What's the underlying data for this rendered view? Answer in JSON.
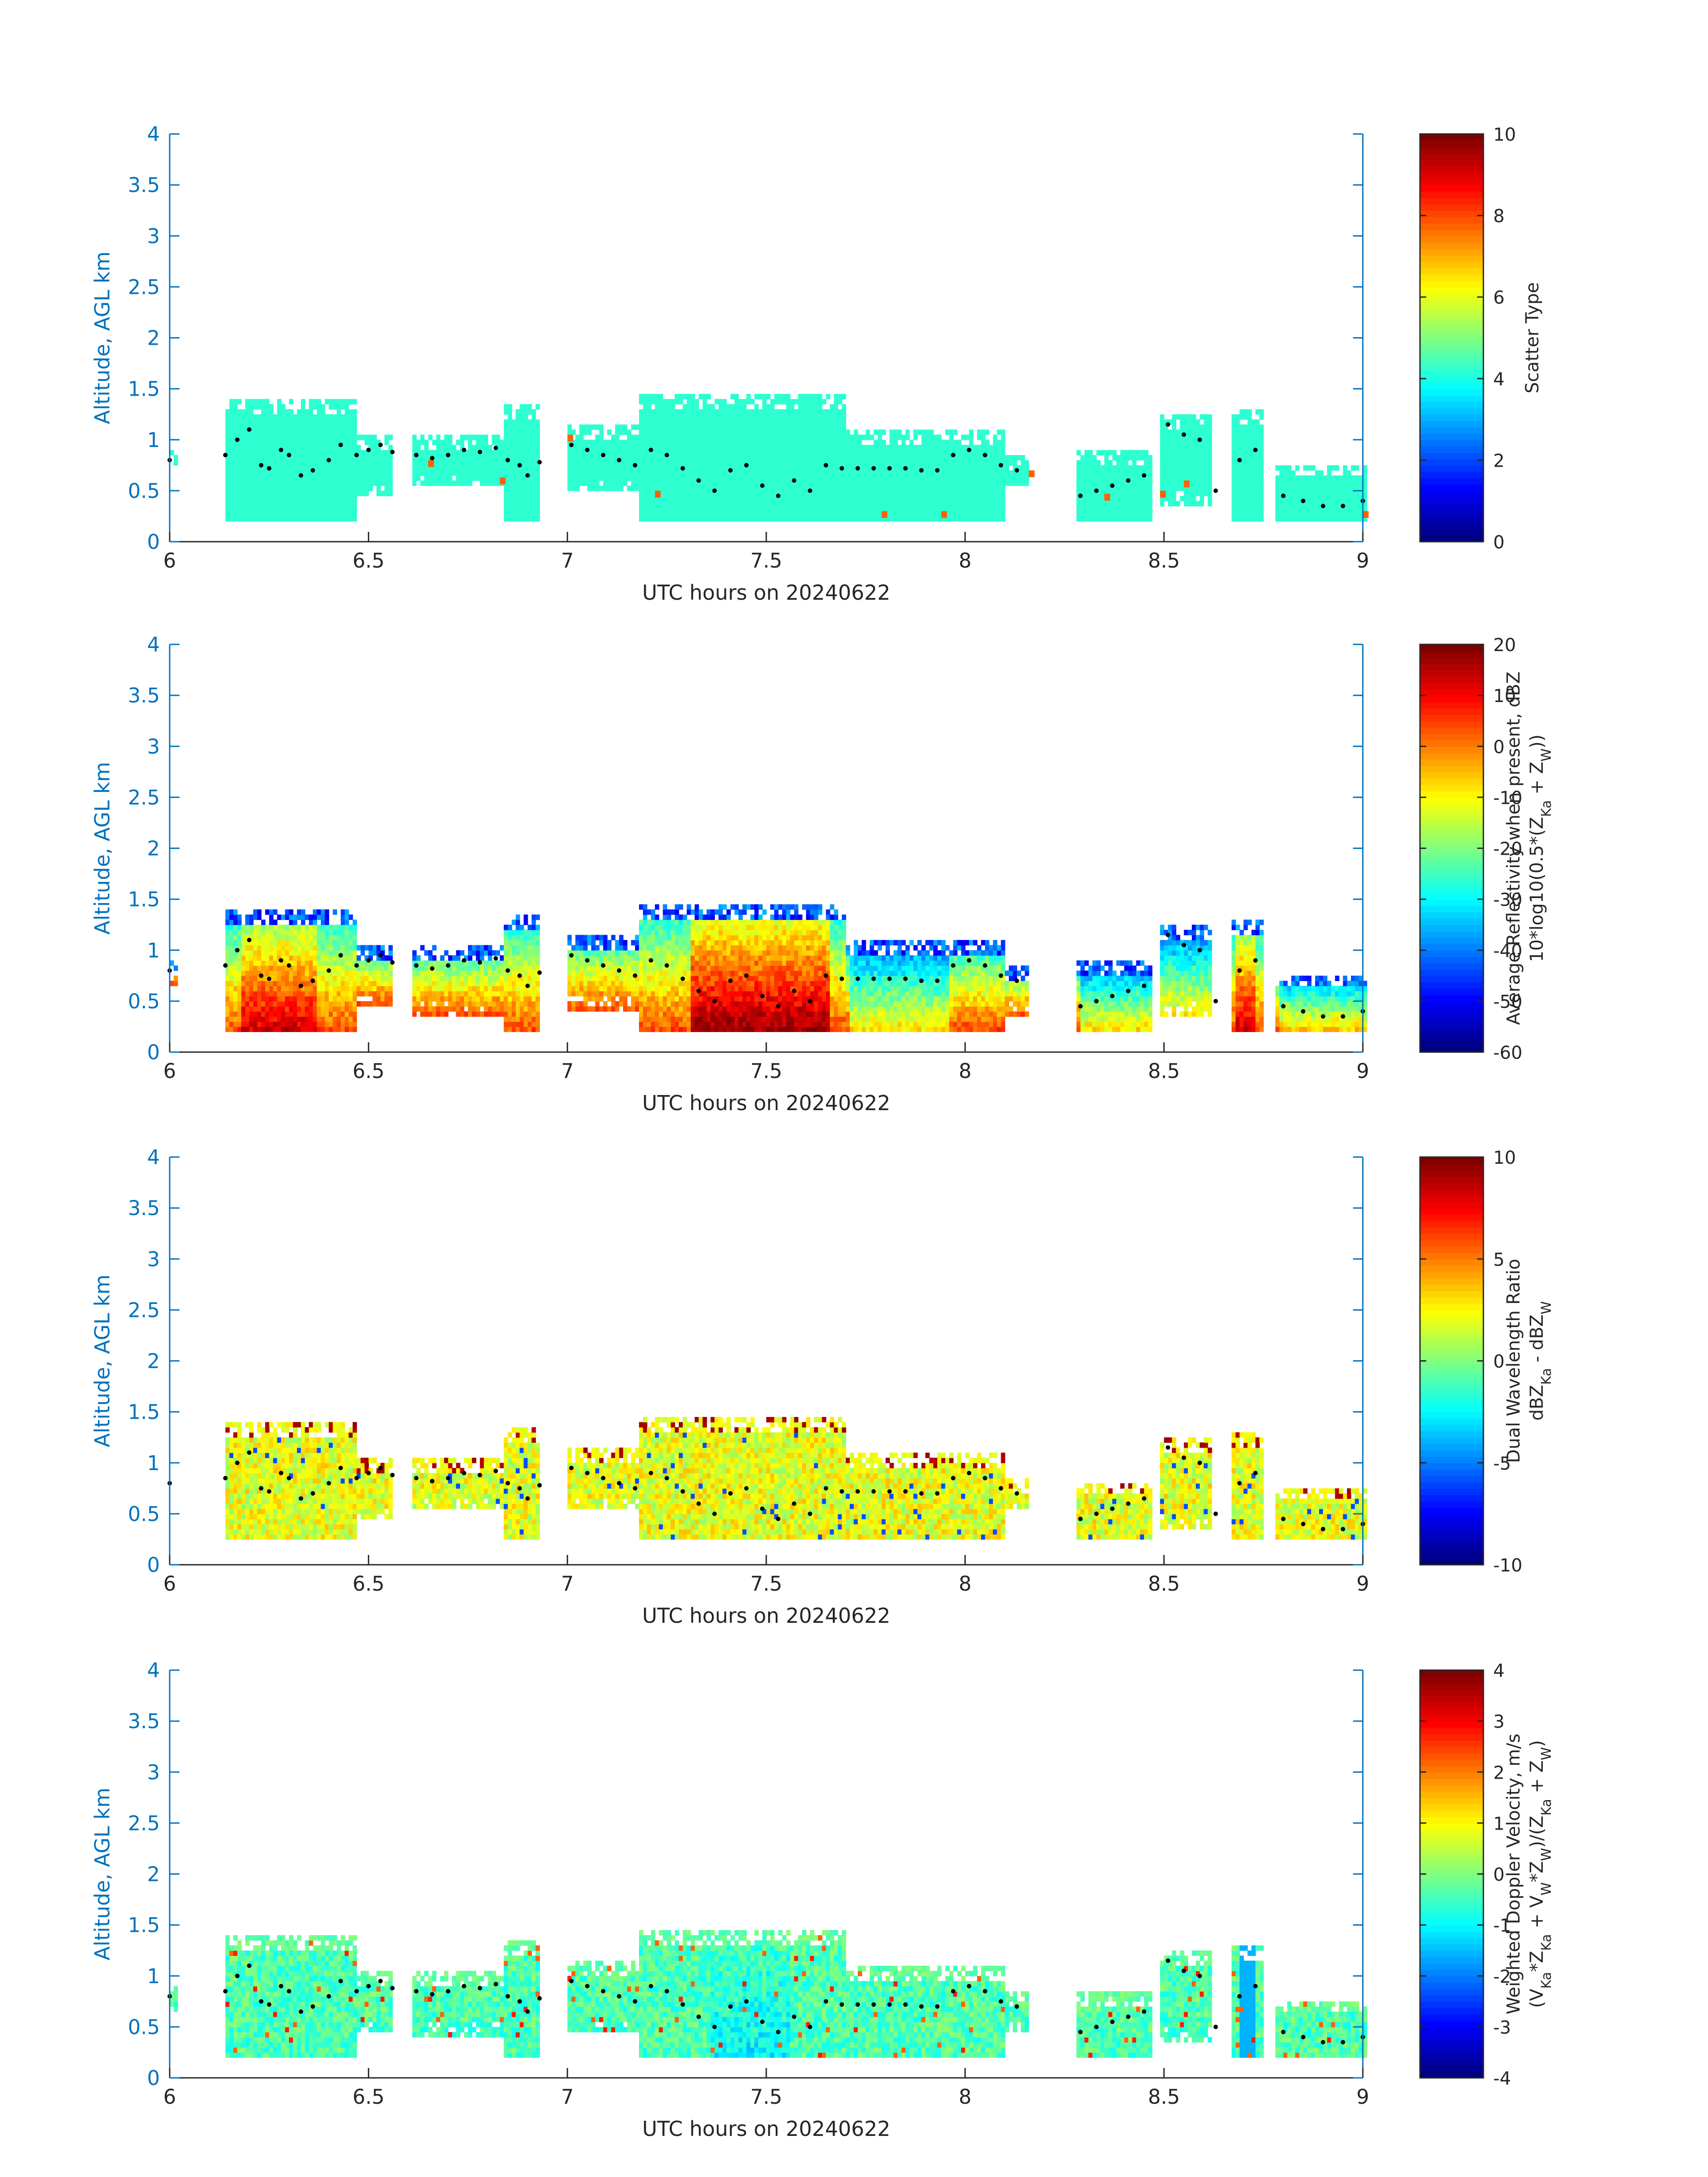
{
  "chart_data": [
    {
      "type": "heatmap",
      "xlabel": "UTC hours on 20240622",
      "ylabel": "Altitude, AGL km",
      "xlim": [
        6,
        9
      ],
      "ylim": [
        0,
        4
      ],
      "xticks": [
        "6",
        "6.5",
        "7",
        "7.5",
        "8",
        "8.5",
        "9"
      ],
      "yticks": [
        "0",
        "0.5",
        "1",
        "1.5",
        "2",
        "2.5",
        "3",
        "3.5",
        "4"
      ],
      "colorbar": {
        "label_lines": [
          "Scatter Type"
        ],
        "range": [
          0,
          10
        ],
        "ticks": [
          "0",
          "2",
          "4",
          "6",
          "8",
          "10"
        ]
      },
      "field": {
        "kind": "scatter",
        "min": 0,
        "max": 10
      },
      "regions": [
        {
          "x0": 6.0,
          "x1": 6.02,
          "y0": 0.75,
          "y1": 0.9
        },
        {
          "x0": 6.14,
          "x1": 6.47,
          "y0": 0.2,
          "y1": 1.4
        },
        {
          "x0": 6.47,
          "x1": 6.56,
          "y0": 0.45,
          "y1": 1.05
        },
        {
          "x0": 6.61,
          "x1": 6.88,
          "y0": 0.55,
          "y1": 1.05
        },
        {
          "x0": 6.84,
          "x1": 6.93,
          "y0": 0.2,
          "y1": 1.35
        },
        {
          "x0": 7.0,
          "x1": 7.22,
          "y0": 0.5,
          "y1": 1.15
        },
        {
          "x0": 7.18,
          "x1": 7.7,
          "y0": 0.2,
          "y1": 1.45
        },
        {
          "x0": 7.7,
          "x1": 8.1,
          "y0": 0.2,
          "y1": 1.1
        },
        {
          "x0": 8.1,
          "x1": 8.16,
          "y0": 0.55,
          "y1": 0.85
        },
        {
          "x0": 8.28,
          "x1": 8.47,
          "y0": 0.2,
          "y1": 0.9
        },
        {
          "x0": 8.49,
          "x1": 8.62,
          "y0": 0.35,
          "y1": 1.25
        },
        {
          "x0": 8.67,
          "x1": 8.75,
          "y0": 0.2,
          "y1": 1.3
        },
        {
          "x0": 8.78,
          "x1": 9.01,
          "y0": 0.2,
          "y1": 0.75
        }
      ],
      "accent_points": [
        {
          "x": 7.0,
          "y": 1.0
        },
        {
          "x": 7.22,
          "y": 0.45
        },
        {
          "x": 7.79,
          "y": 0.25
        },
        {
          "x": 7.94,
          "y": 0.25
        },
        {
          "x": 8.16,
          "y": 0.65
        },
        {
          "x": 8.35,
          "y": 0.42
        },
        {
          "x": 8.49,
          "y": 0.45
        },
        {
          "x": 8.55,
          "y": 0.55
        },
        {
          "x": 6.83,
          "y": 0.58
        },
        {
          "x": 6.65,
          "y": 0.75
        },
        {
          "x": 9.0,
          "y": 0.25
        }
      ]
    },
    {
      "type": "heatmap",
      "xlabel": "UTC hours on 20240622",
      "ylabel": "Altitude, AGL km",
      "xlim": [
        6,
        9
      ],
      "ylim": [
        0,
        4
      ],
      "xticks": [
        "6",
        "6.5",
        "7",
        "7.5",
        "8",
        "8.5",
        "9"
      ],
      "yticks": [
        "0",
        "0.5",
        "1",
        "1.5",
        "2",
        "2.5",
        "3",
        "3.5",
        "4"
      ],
      "colorbar": {
        "label_lines": [
          "Average Reflectivity when present, dBZ",
          "10*log10(0.5*(Z_Ka + Z_W))"
        ],
        "range": [
          -60,
          20
        ],
        "ticks": [
          "-60",
          "-50",
          "-40",
          "-30",
          "-20",
          "-10",
          "0",
          "10",
          "20"
        ]
      },
      "field": {
        "kind": "reflectivity",
        "min": -60,
        "max": 20
      },
      "regions": [
        {
          "x0": 6.0,
          "x1": 6.02,
          "y0": 0.65,
          "y1": 0.9
        },
        {
          "x0": 6.14,
          "x1": 6.47,
          "y0": 0.2,
          "y1": 1.4
        },
        {
          "x0": 6.47,
          "x1": 6.56,
          "y0": 0.45,
          "y1": 1.05
        },
        {
          "x0": 6.61,
          "x1": 6.88,
          "y0": 0.35,
          "y1": 1.05
        },
        {
          "x0": 6.84,
          "x1": 6.93,
          "y0": 0.2,
          "y1": 1.35
        },
        {
          "x0": 7.0,
          "x1": 7.22,
          "y0": 0.4,
          "y1": 1.15
        },
        {
          "x0": 7.18,
          "x1": 7.7,
          "y0": 0.2,
          "y1": 1.45
        },
        {
          "x0": 7.7,
          "x1": 8.1,
          "y0": 0.2,
          "y1": 1.1
        },
        {
          "x0": 8.1,
          "x1": 8.16,
          "y0": 0.35,
          "y1": 0.85
        },
        {
          "x0": 8.28,
          "x1": 8.47,
          "y0": 0.2,
          "y1": 0.9
        },
        {
          "x0": 8.49,
          "x1": 8.62,
          "y0": 0.35,
          "y1": 1.25
        },
        {
          "x0": 8.67,
          "x1": 8.75,
          "y0": 0.2,
          "y1": 1.3
        },
        {
          "x0": 8.78,
          "x1": 9.01,
          "y0": 0.2,
          "y1": 0.75
        }
      ],
      "accent_points": []
    },
    {
      "type": "heatmap",
      "xlabel": "UTC hours on 20240622",
      "ylabel": "Altitude, AGL km",
      "xlim": [
        6,
        9
      ],
      "ylim": [
        0,
        4
      ],
      "xticks": [
        "6",
        "6.5",
        "7",
        "7.5",
        "8",
        "8.5",
        "9"
      ],
      "yticks": [
        "0",
        "0.5",
        "1",
        "1.5",
        "2",
        "2.5",
        "3",
        "3.5",
        "4"
      ],
      "colorbar": {
        "label_lines": [
          "Dual Wavelength Ratio",
          "dBZ_Ka - dBZ_W"
        ],
        "range": [
          -10,
          10
        ],
        "ticks": [
          "-10",
          "-5",
          "0",
          "5",
          "10"
        ]
      },
      "field": {
        "kind": "dwr",
        "min": -10,
        "max": 10
      },
      "regions": [
        {
          "x0": 6.14,
          "x1": 6.47,
          "y0": 0.25,
          "y1": 1.4
        },
        {
          "x0": 6.47,
          "x1": 6.56,
          "y0": 0.45,
          "y1": 1.05
        },
        {
          "x0": 6.61,
          "x1": 6.88,
          "y0": 0.55,
          "y1": 1.05
        },
        {
          "x0": 6.84,
          "x1": 6.93,
          "y0": 0.25,
          "y1": 1.35
        },
        {
          "x0": 7.0,
          "x1": 7.22,
          "y0": 0.55,
          "y1": 1.15
        },
        {
          "x0": 7.18,
          "x1": 7.7,
          "y0": 0.25,
          "y1": 1.45
        },
        {
          "x0": 7.7,
          "x1": 8.1,
          "y0": 0.25,
          "y1": 1.1
        },
        {
          "x0": 8.1,
          "x1": 8.16,
          "y0": 0.55,
          "y1": 0.85
        },
        {
          "x0": 8.28,
          "x1": 8.47,
          "y0": 0.25,
          "y1": 0.8
        },
        {
          "x0": 8.49,
          "x1": 8.62,
          "y0": 0.35,
          "y1": 1.25
        },
        {
          "x0": 8.67,
          "x1": 8.75,
          "y0": 0.25,
          "y1": 1.3
        },
        {
          "x0": 8.78,
          "x1": 9.01,
          "y0": 0.25,
          "y1": 0.75
        }
      ],
      "accent_points": []
    },
    {
      "type": "heatmap",
      "xlabel": "UTC hours on 20240622",
      "ylabel": "Altitude, AGL km",
      "xlim": [
        6,
        9
      ],
      "ylim": [
        0,
        4
      ],
      "xticks": [
        "6",
        "6.5",
        "7",
        "7.5",
        "8",
        "8.5",
        "9"
      ],
      "yticks": [
        "0",
        "0.5",
        "1",
        "1.5",
        "2",
        "2.5",
        "3",
        "3.5",
        "4"
      ],
      "colorbar": {
        "label_lines": [
          "Weighted Doppler Velocity, m/s",
          "(V_Ka*Z_Ka + V_W*Z_W)/(Z_Ka + Z_W)"
        ],
        "range": [
          -4,
          4
        ],
        "ticks": [
          "-4",
          "-3",
          "-2",
          "-1",
          "0",
          "1",
          "2",
          "3",
          "4"
        ]
      },
      "field": {
        "kind": "velocity",
        "min": -4,
        "max": 4
      },
      "regions": [
        {
          "x0": 6.0,
          "x1": 6.02,
          "y0": 0.65,
          "y1": 0.9
        },
        {
          "x0": 6.14,
          "x1": 6.47,
          "y0": 0.2,
          "y1": 1.4
        },
        {
          "x0": 6.47,
          "x1": 6.56,
          "y0": 0.45,
          "y1": 1.05
        },
        {
          "x0": 6.61,
          "x1": 6.88,
          "y0": 0.4,
          "y1": 1.05
        },
        {
          "x0": 6.84,
          "x1": 6.93,
          "y0": 0.2,
          "y1": 1.35
        },
        {
          "x0": 7.0,
          "x1": 7.22,
          "y0": 0.45,
          "y1": 1.15
        },
        {
          "x0": 7.18,
          "x1": 7.7,
          "y0": 0.2,
          "y1": 1.45
        },
        {
          "x0": 7.7,
          "x1": 8.1,
          "y0": 0.2,
          "y1": 1.1
        },
        {
          "x0": 8.1,
          "x1": 8.16,
          "y0": 0.45,
          "y1": 0.85
        },
        {
          "x0": 8.28,
          "x1": 8.47,
          "y0": 0.2,
          "y1": 0.85
        },
        {
          "x0": 8.49,
          "x1": 8.62,
          "y0": 0.35,
          "y1": 1.25
        },
        {
          "x0": 8.67,
          "x1": 8.75,
          "y0": 0.2,
          "y1": 1.3
        },
        {
          "x0": 8.78,
          "x1": 9.01,
          "y0": 0.2,
          "y1": 0.75
        }
      ],
      "accent_points": []
    }
  ],
  "cloud_base_series": {
    "x": [
      6.0,
      6.14,
      6.17,
      6.2,
      6.23,
      6.25,
      6.28,
      6.3,
      6.33,
      6.36,
      6.4,
      6.43,
      6.47,
      6.5,
      6.53,
      6.56,
      6.62,
      6.66,
      6.7,
      6.74,
      6.78,
      6.82,
      6.85,
      6.88,
      6.9,
      6.93,
      7.01,
      7.05,
      7.09,
      7.13,
      7.17,
      7.21,
      7.25,
      7.29,
      7.33,
      7.37,
      7.41,
      7.45,
      7.49,
      7.53,
      7.57,
      7.61,
      7.65,
      7.69,
      7.73,
      7.77,
      7.81,
      7.85,
      7.89,
      7.93,
      7.97,
      8.01,
      8.05,
      8.09,
      8.13,
      8.29,
      8.33,
      8.37,
      8.41,
      8.45,
      8.51,
      8.55,
      8.59,
      8.63,
      8.69,
      8.73,
      8.8,
      8.85,
      8.9,
      8.95,
      9.0
    ],
    "y": [
      0.8,
      0.85,
      1.0,
      1.1,
      0.75,
      0.72,
      0.9,
      0.85,
      0.65,
      0.7,
      0.8,
      0.95,
      0.85,
      0.9,
      0.95,
      0.88,
      0.85,
      0.82,
      0.85,
      0.9,
      0.88,
      0.92,
      0.8,
      0.75,
      0.65,
      0.78,
      0.95,
      0.9,
      0.85,
      0.8,
      0.75,
      0.9,
      0.85,
      0.72,
      0.6,
      0.5,
      0.7,
      0.75,
      0.55,
      0.45,
      0.6,
      0.5,
      0.75,
      0.72,
      0.72,
      0.72,
      0.72,
      0.72,
      0.7,
      0.7,
      0.85,
      0.9,
      0.85,
      0.75,
      0.7,
      0.45,
      0.5,
      0.55,
      0.6,
      0.65,
      1.15,
      1.05,
      1.0,
      0.5,
      0.8,
      0.9,
      0.45,
      0.4,
      0.35,
      0.35,
      0.4
    ]
  }
}
